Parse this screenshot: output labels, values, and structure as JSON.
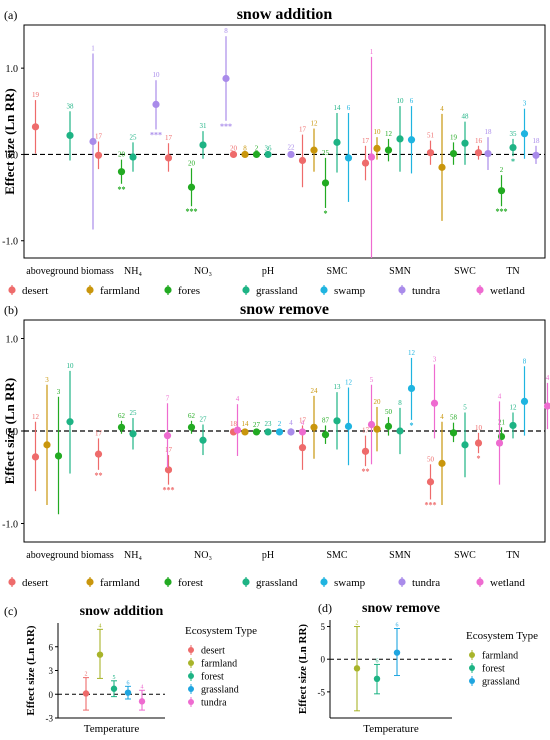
{
  "colors": {
    "desert": "#ee6b6b",
    "farmland": "#c9960c",
    "fores": "#22aa22",
    "forest": "#22aa22",
    "grassland": "#1db384",
    "swamp": "#1fb4e0",
    "tundra": "#a98bea",
    "wetland": "#ee6bd0",
    "farmland_small": "#a8b42a",
    "forest_small": "#1db384",
    "grassland_small": "#1fa5e0"
  },
  "chart_data": [
    {
      "type": "scatter",
      "panel": "(a)",
      "title": "snow addition",
      "ylabel": "Effect size (Ln RR)",
      "ylim": [
        -1.2,
        1.5
      ],
      "yticks": [
        -1.0,
        0.0,
        1.0
      ],
      "categories": [
        "aboveground biomass",
        "NH₄",
        "NO₃",
        "pH",
        "SMC",
        "SMN",
        "SWC",
        "TN"
      ],
      "legend_position": "bottom",
      "series": [
        {
          "name": "desert",
          "points": [
            {
              "cat": 0,
              "y": 0.32,
              "lo": 0.01,
              "hi": 0.63,
              "n": "19",
              "sig": ""
            },
            {
              "cat": 1,
              "y": -0.01,
              "lo": -0.17,
              "hi": 0.15,
              "n": "17",
              "sig": ""
            },
            {
              "cat": 2,
              "y": -0.04,
              "lo": -0.2,
              "hi": 0.13,
              "n": "17",
              "sig": ""
            },
            {
              "cat": 3,
              "y": 0.0,
              "lo": -0.01,
              "hi": 0.01,
              "n": "20",
              "sig": ""
            },
            {
              "cat": 4,
              "y": -0.07,
              "lo": -0.38,
              "hi": 0.23,
              "n": "17",
              "sig": ""
            },
            {
              "cat": 5,
              "y": -0.1,
              "lo": -0.3,
              "hi": 0.1,
              "n": "17",
              "sig": ""
            },
            {
              "cat": 6,
              "y": 0.02,
              "lo": -0.12,
              "hi": 0.16,
              "n": "51",
              "sig": ""
            },
            {
              "cat": 7,
              "y": 0.02,
              "lo": -0.06,
              "hi": 0.1,
              "n": "16",
              "sig": ""
            }
          ]
        },
        {
          "name": "farmland",
          "points": [
            {
              "cat": 3,
              "y": 0.0,
              "lo": -0.01,
              "hi": 0.01,
              "n": "8",
              "sig": ""
            },
            {
              "cat": 4,
              "y": 0.05,
              "lo": -0.2,
              "hi": 0.3,
              "n": "12",
              "sig": ""
            },
            {
              "cat": 5,
              "y": 0.07,
              "lo": -0.06,
              "hi": 0.2,
              "n": "10",
              "sig": ""
            },
            {
              "cat": 6,
              "y": -0.15,
              "lo": -0.77,
              "hi": 0.47,
              "n": "4",
              "sig": ""
            }
          ]
        },
        {
          "name": "fores",
          "points": [
            {
              "cat": 1,
              "y": -0.2,
              "lo": -0.34,
              "hi": -0.06,
              "n": "20",
              "sig": "**"
            },
            {
              "cat": 2,
              "y": -0.38,
              "lo": -0.6,
              "hi": -0.16,
              "n": "20",
              "sig": "***"
            },
            {
              "cat": 3,
              "y": 0.0,
              "lo": -0.01,
              "hi": 0.01,
              "n": "2",
              "sig": ""
            },
            {
              "cat": 4,
              "y": -0.33,
              "lo": -0.62,
              "hi": -0.04,
              "n": "25",
              "sig": "*"
            },
            {
              "cat": 5,
              "y": 0.05,
              "lo": -0.08,
              "hi": 0.18,
              "n": "12",
              "sig": ""
            },
            {
              "cat": 6,
              "y": 0.01,
              "lo": -0.12,
              "hi": 0.14,
              "n": "19",
              "sig": ""
            },
            {
              "cat": 7,
              "y": -0.42,
              "lo": -0.6,
              "hi": -0.24,
              "n": "2",
              "sig": "***"
            }
          ]
        },
        {
          "name": "grassland",
          "points": [
            {
              "cat": 0,
              "y": 0.22,
              "lo": -0.07,
              "hi": 0.5,
              "n": "38",
              "sig": ""
            },
            {
              "cat": 1,
              "y": -0.03,
              "lo": -0.2,
              "hi": 0.14,
              "n": "25",
              "sig": ""
            },
            {
              "cat": 2,
              "y": 0.11,
              "lo": -0.05,
              "hi": 0.27,
              "n": "31",
              "sig": ""
            },
            {
              "cat": 3,
              "y": 0.0,
              "lo": -0.01,
              "hi": 0.01,
              "n": "36",
              "sig": ""
            },
            {
              "cat": 4,
              "y": 0.14,
              "lo": -0.21,
              "hi": 0.48,
              "n": "14",
              "sig": ""
            },
            {
              "cat": 5,
              "y": 0.18,
              "lo": -0.2,
              "hi": 0.56,
              "n": "10",
              "sig": ""
            },
            {
              "cat": 6,
              "y": 0.13,
              "lo": -0.12,
              "hi": 0.38,
              "n": "48",
              "sig": ""
            },
            {
              "cat": 7,
              "y": 0.08,
              "lo": -0.02,
              "hi": 0.18,
              "n": "35",
              "sig": "*"
            }
          ]
        },
        {
          "name": "swamp",
          "points": [
            {
              "cat": 4,
              "y": -0.04,
              "lo": -0.55,
              "hi": 0.48,
              "n": "6",
              "sig": ""
            },
            {
              "cat": 5,
              "y": 0.17,
              "lo": -0.22,
              "hi": 0.56,
              "n": "6",
              "sig": ""
            },
            {
              "cat": 7,
              "y": 0.24,
              "lo": -0.05,
              "hi": 0.53,
              "n": "3",
              "sig": ""
            }
          ]
        },
        {
          "name": "tundra",
          "points": [
            {
              "cat": 0,
              "y": 0.15,
              "lo": -0.87,
              "hi": 1.17,
              "n": "1",
              "sig": ""
            },
            {
              "cat": 1,
              "y": 0.58,
              "lo": 0.29,
              "hi": 0.86,
              "n": "10",
              "sig": "***"
            },
            {
              "cat": 2,
              "y": 0.88,
              "lo": 0.39,
              "hi": 1.37,
              "n": "8",
              "sig": "***"
            },
            {
              "cat": 3,
              "y": 0.0,
              "lo": -0.02,
              "hi": 0.02,
              "n": "22",
              "sig": ""
            },
            {
              "cat": 6,
              "y": 0.01,
              "lo": -0.18,
              "hi": 0.2,
              "n": "18",
              "sig": ""
            },
            {
              "cat": 7,
              "y": -0.01,
              "lo": -0.11,
              "hi": 0.1,
              "n": "18",
              "sig": ""
            }
          ]
        },
        {
          "name": "wetland",
          "points": [
            {
              "cat": 4,
              "y": -0.03,
              "lo": -1.2,
              "hi": 1.13,
              "n": "1",
              "sig": ""
            }
          ]
        }
      ]
    },
    {
      "type": "scatter",
      "panel": "(b)",
      "title": "snow remove",
      "ylabel": "Effect size (Ln RR)",
      "ylim": [
        -1.2,
        1.2
      ],
      "yticks": [
        -1.0,
        0.0,
        1.0
      ],
      "categories": [
        "aboveground biomass",
        "NH₄",
        "NO₃",
        "pH",
        "SMC",
        "SMN",
        "SWC",
        "TN"
      ],
      "legend_position": "bottom",
      "series": [
        {
          "name": "desert",
          "points": [
            {
              "cat": 0,
              "y": -0.28,
              "lo": -0.65,
              "hi": 0.1,
              "n": "12",
              "sig": ""
            },
            {
              "cat": 1,
              "y": -0.25,
              "lo": -0.42,
              "hi": -0.08,
              "n": "17",
              "sig": "**"
            },
            {
              "cat": 2,
              "y": -0.42,
              "lo": -0.58,
              "hi": -0.26,
              "n": "17",
              "sig": "***"
            },
            {
              "cat": 3,
              "y": -0.01,
              "lo": -0.04,
              "hi": 0.02,
              "n": "18",
              "sig": ""
            },
            {
              "cat": 4,
              "y": -0.18,
              "lo": -0.42,
              "hi": 0.06,
              "n": "17",
              "sig": ""
            },
            {
              "cat": 5,
              "y": -0.22,
              "lo": -0.38,
              "hi": -0.05,
              "n": "17",
              "sig": "**"
            },
            {
              "cat": 6,
              "y": -0.55,
              "lo": -0.74,
              "hi": -0.36,
              "n": "50",
              "sig": "***"
            },
            {
              "cat": 7,
              "y": -0.13,
              "lo": -0.24,
              "hi": -0.02,
              "n": "10",
              "sig": "*"
            }
          ]
        },
        {
          "name": "farmland",
          "points": [
            {
              "cat": 0,
              "y": -0.15,
              "lo": -0.8,
              "hi": 0.5,
              "n": "3",
              "sig": ""
            },
            {
              "cat": 3,
              "y": -0.01,
              "lo": -0.04,
              "hi": 0.02,
              "n": "14",
              "sig": ""
            },
            {
              "cat": 4,
              "y": 0.04,
              "lo": -0.3,
              "hi": 0.38,
              "n": "24",
              "sig": ""
            },
            {
              "cat": 5,
              "y": 0.02,
              "lo": -0.22,
              "hi": 0.26,
              "n": "20",
              "sig": ""
            },
            {
              "cat": 6,
              "y": -0.35,
              "lo": -0.8,
              "hi": 0.1,
              "n": "4",
              "sig": ""
            }
          ]
        },
        {
          "name": "forest",
          "points": [
            {
              "cat": 0,
              "y": -0.27,
              "lo": -0.9,
              "hi": 0.37,
              "n": "3",
              "sig": ""
            },
            {
              "cat": 1,
              "y": 0.04,
              "lo": -0.03,
              "hi": 0.11,
              "n": "62",
              "sig": ""
            },
            {
              "cat": 2,
              "y": 0.04,
              "lo": -0.03,
              "hi": 0.11,
              "n": "62",
              "sig": ""
            },
            {
              "cat": 3,
              "y": -0.01,
              "lo": -0.03,
              "hi": 0.01,
              "n": "27",
              "sig": ""
            },
            {
              "cat": 4,
              "y": -0.04,
              "lo": -0.14,
              "hi": 0.06,
              "n": "87",
              "sig": ""
            },
            {
              "cat": 5,
              "y": 0.05,
              "lo": -0.05,
              "hi": 0.15,
              "n": "50",
              "sig": ""
            },
            {
              "cat": 6,
              "y": -0.02,
              "lo": -0.12,
              "hi": 0.09,
              "n": "58",
              "sig": ""
            },
            {
              "cat": 7,
              "y": -0.06,
              "lo": -0.16,
              "hi": 0.04,
              "n": "21",
              "sig": ""
            }
          ]
        },
        {
          "name": "grassland",
          "points": [
            {
              "cat": 0,
              "y": 0.1,
              "lo": -0.46,
              "hi": 0.65,
              "n": "10",
              "sig": ""
            },
            {
              "cat": 1,
              "y": -0.03,
              "lo": -0.2,
              "hi": 0.14,
              "n": "25",
              "sig": ""
            },
            {
              "cat": 2,
              "y": -0.1,
              "lo": -0.26,
              "hi": 0.07,
              "n": "27",
              "sig": ""
            },
            {
              "cat": 3,
              "y": -0.01,
              "lo": -0.04,
              "hi": 0.02,
              "n": "23",
              "sig": ""
            },
            {
              "cat": 4,
              "y": 0.11,
              "lo": -0.2,
              "hi": 0.42,
              "n": "13",
              "sig": ""
            },
            {
              "cat": 5,
              "y": 0.0,
              "lo": -0.25,
              "hi": 0.25,
              "n": "8",
              "sig": ""
            },
            {
              "cat": 6,
              "y": -0.15,
              "lo": -0.5,
              "hi": 0.2,
              "n": "5",
              "sig": ""
            },
            {
              "cat": 7,
              "y": 0.06,
              "lo": -0.08,
              "hi": 0.2,
              "n": "12",
              "sig": ""
            }
          ]
        },
        {
          "name": "swamp",
          "points": [
            {
              "cat": 3,
              "y": -0.01,
              "lo": -0.04,
              "hi": 0.02,
              "n": "2",
              "sig": ""
            },
            {
              "cat": 4,
              "y": 0.05,
              "lo": -0.37,
              "hi": 0.47,
              "n": "12",
              "sig": ""
            },
            {
              "cat": 5,
              "y": 0.46,
              "lo": 0.12,
              "hi": 0.79,
              "n": "12",
              "sig": "*"
            },
            {
              "cat": 7,
              "y": 0.32,
              "lo": -0.05,
              "hi": 0.7,
              "n": "8",
              "sig": ""
            }
          ]
        },
        {
          "name": "tundra",
          "points": [
            {
              "cat": 3,
              "y": -0.01,
              "lo": -0.05,
              "hi": 0.03,
              "n": "4",
              "sig": ""
            }
          ]
        },
        {
          "name": "wetland",
          "points": [
            {
              "cat": 1,
              "y": -0.05,
              "lo": -0.4,
              "hi": 0.3,
              "n": "7",
              "sig": ""
            },
            {
              "cat": 2,
              "y": 0.01,
              "lo": -0.27,
              "hi": 0.29,
              "n": "4",
              "sig": ""
            },
            {
              "cat": 3,
              "y": -0.01,
              "lo": -0.05,
              "hi": 0.03,
              "n": "4",
              "sig": ""
            },
            {
              "cat": 4,
              "y": 0.07,
              "lo": -0.36,
              "hi": 0.5,
              "n": "5",
              "sig": ""
            },
            {
              "cat": 5,
              "y": 0.3,
              "lo": -0.08,
              "hi": 0.72,
              "n": "3",
              "sig": ""
            },
            {
              "cat": 6,
              "y": -0.13,
              "lo": -0.58,
              "hi": 0.32,
              "n": "4",
              "sig": ""
            },
            {
              "cat": 7,
              "y": 0.27,
              "lo": 0.02,
              "hi": 0.52,
              "n": "4",
              "sig": ""
            }
          ]
        }
      ]
    },
    {
      "type": "scatter",
      "panel": "(c)",
      "title": "snow addition",
      "ylabel": "Effect size (Ln RR)",
      "xlabel": "Temperature",
      "ylim": [
        -3,
        9
      ],
      "yticks": [
        -3,
        0,
        3,
        6
      ],
      "legend_title": "Ecosystem Type",
      "legend_position": "right",
      "series": [
        {
          "name": "desert",
          "y": 0.1,
          "lo": -2.0,
          "hi": 2.1,
          "n": "2"
        },
        {
          "name": "farmland",
          "y": 5.0,
          "lo": 2.0,
          "hi": 8.2,
          "n": "4"
        },
        {
          "name": "forest",
          "y": 0.7,
          "lo": -0.3,
          "hi": 1.7,
          "n": "5"
        },
        {
          "name": "grassland",
          "y": 0.2,
          "lo": -0.6,
          "hi": 1.0,
          "n": "6"
        },
        {
          "name": "tundra",
          "y": -0.9,
          "lo": -2.0,
          "hi": 0.5,
          "n": "4"
        }
      ]
    },
    {
      "type": "scatter",
      "panel": "(d)",
      "title": "snow remove",
      "ylabel": "Effect size (Ln RR)",
      "xlabel": "Temperature",
      "ylim": [
        -9,
        6
      ],
      "yticks": [
        -5,
        0,
        5
      ],
      "legend_title": "Ecosystem Type",
      "legend_position": "right",
      "series": [
        {
          "name": "farmland",
          "y": -1.4,
          "lo": -7.9,
          "hi": 5.0,
          "n": "2"
        },
        {
          "name": "forest",
          "y": -3.0,
          "lo": -5.3,
          "hi": -0.8,
          "n": "6"
        },
        {
          "name": "grassland",
          "y": 1.0,
          "lo": -2.5,
          "hi": 4.7,
          "n": "6"
        }
      ]
    }
  ]
}
